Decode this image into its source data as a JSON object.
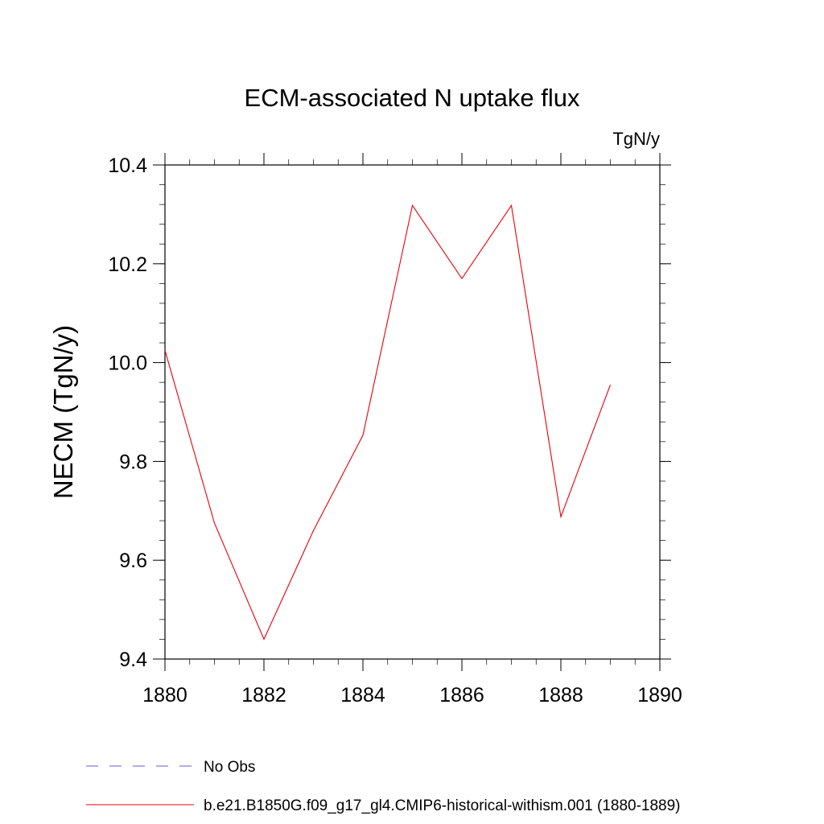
{
  "chart_data": {
    "type": "line",
    "title": "ECM-associated N uptake flux",
    "units_label": "TgN/y",
    "ylabel": "NECM  (TgN/y)",
    "xlabel": "",
    "xlim": [
      1880,
      1890
    ],
    "ylim": [
      9.4,
      10.4
    ],
    "x_ticks": [
      1880,
      1882,
      1884,
      1886,
      1888,
      1890
    ],
    "y_ticks": [
      "9.4",
      "9.6",
      "9.8",
      "10.0",
      "10.2",
      "10.4"
    ],
    "grid": false,
    "legend_position": "bottom-left",
    "series": [
      {
        "name": "b.e21.B1850G.f09_g17_gl4.CMIP6-historical-withism.001 (1880-1889)",
        "color": "#e8000b",
        "dash": "solid",
        "x": [
          1880,
          1881,
          1882,
          1883,
          1884,
          1885,
          1886,
          1887,
          1888,
          1889
        ],
        "y": [
          10.025,
          9.675,
          9.44,
          9.66,
          9.853,
          10.318,
          10.17,
          10.318,
          9.688,
          9.955
        ]
      }
    ],
    "legend": [
      {
        "label": "No Obs",
        "color": "#6a5acd",
        "dash": "dashed"
      },
      {
        "label": "b.e21.B1850G.f09_g17_gl4.CMIP6-historical-withism.001 (1880-1889)",
        "color": "#e8000b",
        "dash": "solid"
      }
    ]
  }
}
